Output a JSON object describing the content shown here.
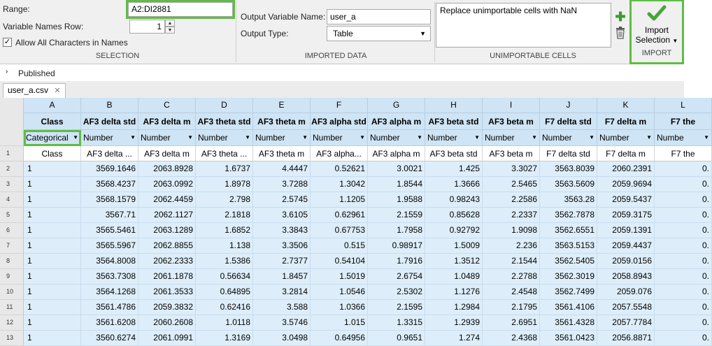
{
  "selection": {
    "range_label": "Range:",
    "range_value": "A2:DI2881",
    "var_names_row_label": "Variable Names Row:",
    "var_names_row_value": "1",
    "allow_all_label": "Allow All Characters in Names",
    "allow_all_checked": "✓",
    "section_title": "SELECTION"
  },
  "imported_data": {
    "output_name_label": "Output Variable Name:",
    "output_name_value": "user_a",
    "output_type_label": "Output Type:",
    "output_type_value": "Table",
    "section_title": "IMPORTED DATA"
  },
  "unimportable": {
    "rule_text": "Replace unimportable cells with NaN",
    "section_title": "UNIMPORTABLE CELLS"
  },
  "import": {
    "button_line1": "Import",
    "button_line2": "Selection",
    "section_title": "IMPORT"
  },
  "published_label": "Published",
  "file_tab": "user_a.csv",
  "grid": {
    "columns": [
      {
        "letter": "A",
        "name": "Class",
        "type": "Categorical",
        "orig": "Class"
      },
      {
        "letter": "B",
        "name": "AF3 delta std",
        "type": "Number",
        "orig": "AF3 delta ..."
      },
      {
        "letter": "C",
        "name": "AF3 delta m",
        "type": "Number",
        "orig": "AF3 delta m"
      },
      {
        "letter": "D",
        "name": "AF3 theta std",
        "type": "Number",
        "orig": "AF3 theta ..."
      },
      {
        "letter": "E",
        "name": "AF3 theta m",
        "type": "Number",
        "orig": "AF3 theta m"
      },
      {
        "letter": "F",
        "name": "AF3 alpha std",
        "type": "Number",
        "orig": "AF3 alpha..."
      },
      {
        "letter": "G",
        "name": "AF3 alpha m",
        "type": "Number",
        "orig": "AF3 alpha m"
      },
      {
        "letter": "H",
        "name": "AF3 beta std",
        "type": "Number",
        "orig": "AF3 beta std"
      },
      {
        "letter": "I",
        "name": "AF3 beta m",
        "type": "Number",
        "orig": "AF3 beta m"
      },
      {
        "letter": "J",
        "name": "F7 delta std",
        "type": "Number",
        "orig": "F7 delta std"
      },
      {
        "letter": "K",
        "name": "F7 delta m",
        "type": "Number",
        "orig": "F7 delta m"
      },
      {
        "letter": "L",
        "name": "F7 the",
        "type": "Numbe",
        "orig": "F7 the"
      }
    ],
    "rows": [
      {
        "num": "2",
        "cells": [
          "1",
          "3569.1646",
          "2063.8928",
          "1.6737",
          "4.4447",
          "0.52621",
          "3.0021",
          "1.425",
          "3.3027",
          "3563.8039",
          "2060.2391",
          "0."
        ]
      },
      {
        "num": "3",
        "cells": [
          "1",
          "3568.4237",
          "2063.0992",
          "1.8978",
          "3.7288",
          "1.3042",
          "1.8544",
          "1.3666",
          "2.5465",
          "3563.5609",
          "2059.9694",
          "0."
        ]
      },
      {
        "num": "4",
        "cells": [
          "1",
          "3568.1579",
          "2062.4459",
          "2.798",
          "2.5745",
          "1.1205",
          "1.9588",
          "0.98243",
          "2.2586",
          "3563.28",
          "2059.5437",
          "0."
        ]
      },
      {
        "num": "5",
        "cells": [
          "1",
          "3567.71",
          "2062.1127",
          "2.1818",
          "3.6105",
          "0.62961",
          "2.1559",
          "0.85628",
          "2.2337",
          "3562.7878",
          "2059.3175",
          "0."
        ]
      },
      {
        "num": "6",
        "cells": [
          "1",
          "3565.5461",
          "2063.1289",
          "1.6852",
          "3.3843",
          "0.67753",
          "1.7958",
          "0.92792",
          "1.9098",
          "3562.6551",
          "2059.1391",
          "0."
        ]
      },
      {
        "num": "7",
        "cells": [
          "1",
          "3565.5967",
          "2062.8855",
          "1.138",
          "3.3506",
          "0.515",
          "0.98917",
          "1.5009",
          "2.236",
          "3563.5153",
          "2059.4437",
          "0."
        ]
      },
      {
        "num": "8",
        "cells": [
          "1",
          "3564.8008",
          "2062.2333",
          "1.5386",
          "2.7377",
          "0.54104",
          "1.7916",
          "1.3512",
          "2.1544",
          "3562.5405",
          "2059.0156",
          "0."
        ]
      },
      {
        "num": "9",
        "cells": [
          "1",
          "3563.7308",
          "2061.1878",
          "0.56634",
          "1.8457",
          "1.5019",
          "2.6754",
          "1.0489",
          "2.2788",
          "3562.3019",
          "2058.8943",
          "0."
        ]
      },
      {
        "num": "10",
        "cells": [
          "1",
          "3564.1268",
          "2061.3533",
          "0.64895",
          "3.2814",
          "1.0546",
          "2.5302",
          "1.1276",
          "2.4548",
          "3562.7499",
          "2059.076",
          "0."
        ]
      },
      {
        "num": "11",
        "cells": [
          "1",
          "3561.4786",
          "2059.3832",
          "0.62416",
          "3.588",
          "1.0366",
          "2.1595",
          "1.2984",
          "2.1795",
          "3561.4106",
          "2057.5548",
          "0."
        ]
      },
      {
        "num": "12",
        "cells": [
          "1",
          "3561.6208",
          "2060.2608",
          "1.0118",
          "3.5746",
          "1.015",
          "1.3315",
          "1.2939",
          "2.6951",
          "3561.4328",
          "2057.7784",
          "0."
        ]
      },
      {
        "num": "13",
        "cells": [
          "1",
          "3560.6274",
          "2061.0991",
          "1.3169",
          "3.0498",
          "0.64956",
          "0.9651",
          "1.274",
          "2.4368",
          "3561.0423",
          "2056.8871",
          "0."
        ]
      }
    ]
  }
}
